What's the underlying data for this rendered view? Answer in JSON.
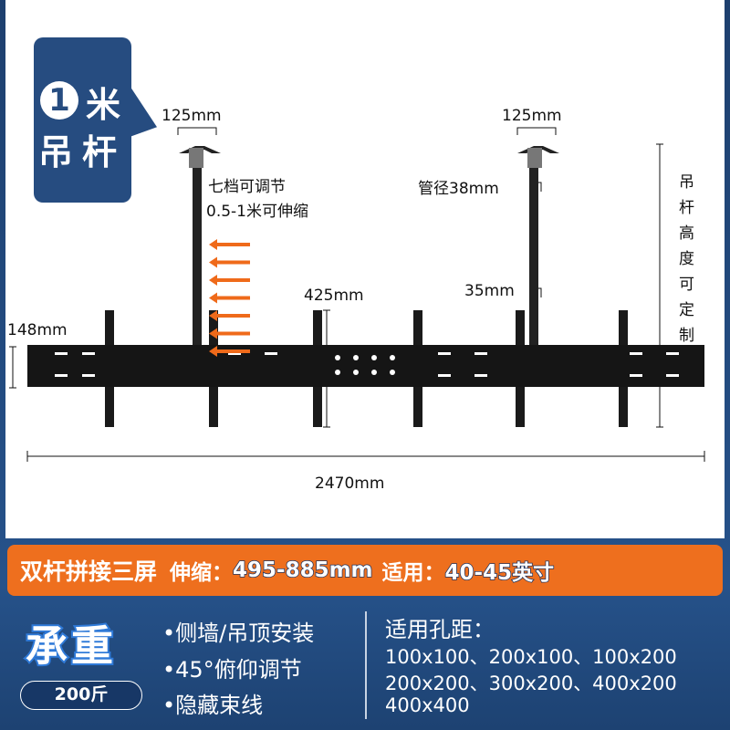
{
  "badge": {
    "number": "1",
    "line1": "米",
    "line2": "吊杆"
  },
  "diagram": {
    "left_pole_width": "125mm",
    "right_pole_width": "125mm",
    "adjust_line1": "七档可调节",
    "adjust_line2": "0.5-1米可伸缩",
    "pipe_diameter": "管径38mm",
    "bar_spacing": "425mm",
    "inner_tube": "35mm",
    "beam_height": "148mm",
    "total_length": "2470mm",
    "custom_height": "吊杆高度可定制",
    "arrow_count": 7,
    "arrow_color": "#ef6a1a"
  },
  "banner": {
    "title": "双杆拼接三屏",
    "stretch_label": "伸缩：",
    "stretch_value": "495-885mm",
    "fit_label": "适用：",
    "fit_value": "40-45英寸",
    "color": "#ee6f1e"
  },
  "load": {
    "title": "承重",
    "value": "200斤"
  },
  "features": [
    "•侧墙/吊顶安装",
    "•45°俯仰调节",
    "•隐藏束线"
  ],
  "vesa": {
    "title": "适用孔距：",
    "lines": [
      "100x100、200x100、100x200",
      "200x200、300x200、400x200",
      "400x400"
    ]
  }
}
